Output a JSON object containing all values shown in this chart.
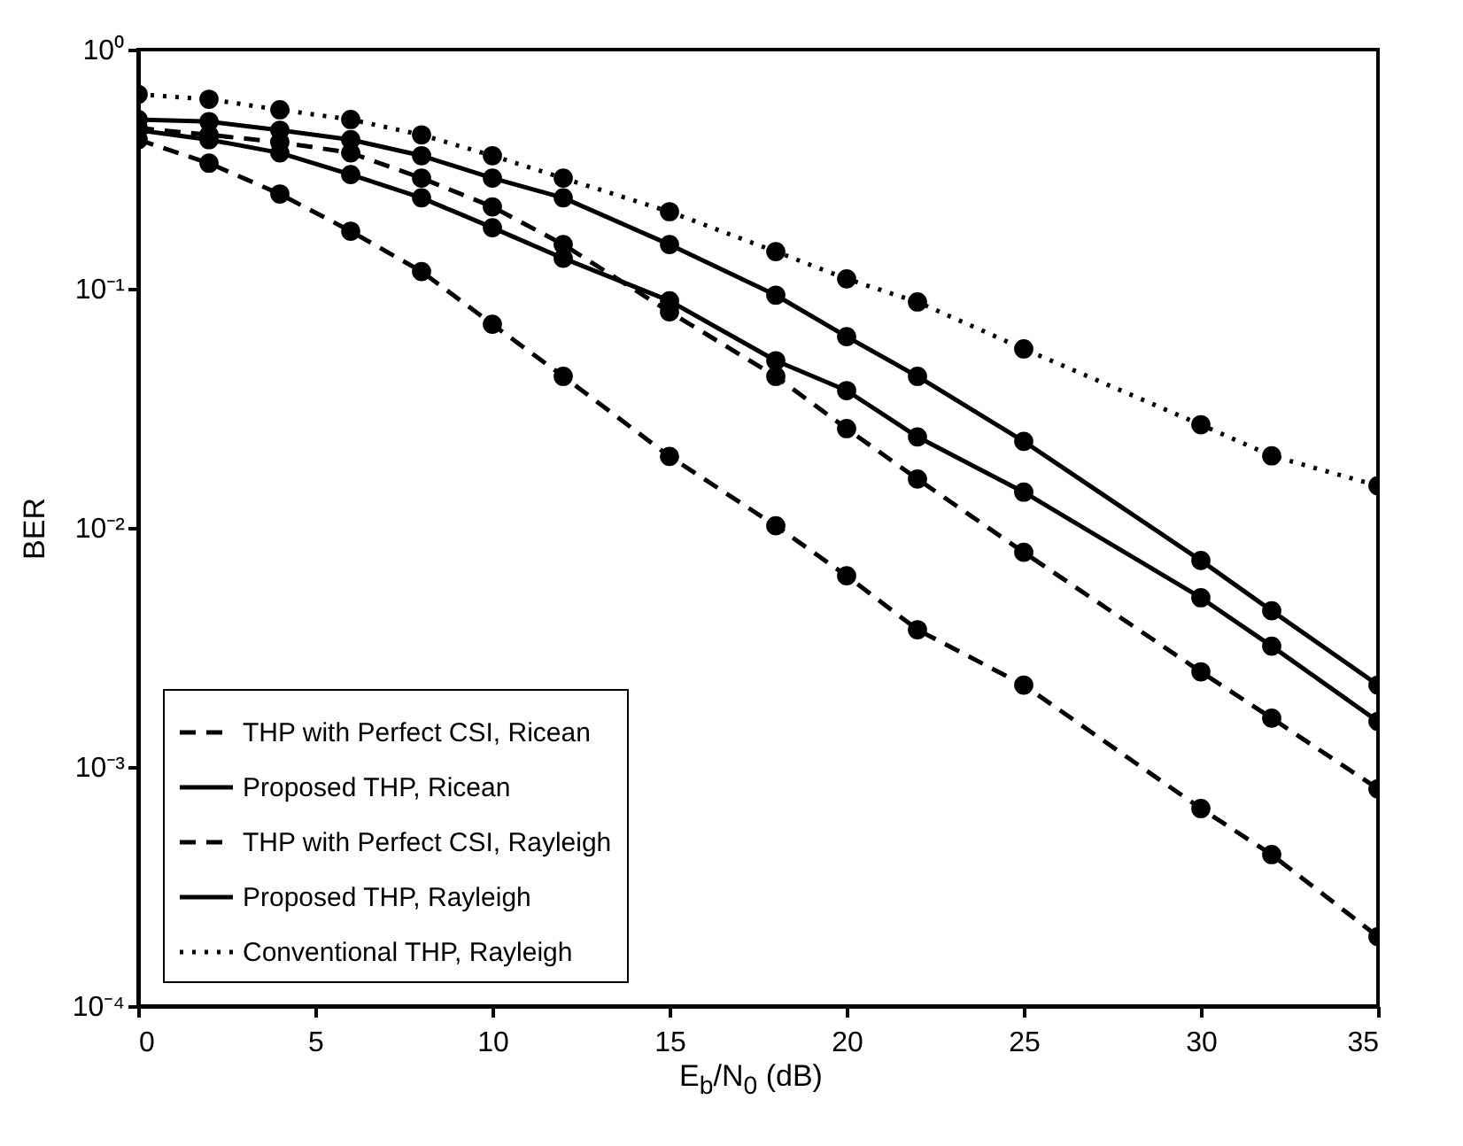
{
  "chart_data": {
    "type": "line",
    "xlabel": "E$_{b}$/N$_{0}$ (dB)",
    "ylabel": "BER",
    "log": "y",
    "grid": false,
    "legend": "bottom left",
    "marker": "circle",
    "x": [
      0,
      2,
      4,
      6,
      8,
      10,
      12,
      15,
      18,
      20,
      22,
      25,
      30,
      32,
      35
    ],
    "xlim": [
      0,
      35
    ],
    "xticks": [
      0,
      5,
      10,
      15,
      20,
      25,
      30,
      35
    ],
    "ylim": [
      0.0001,
      1
    ],
    "yticks": [
      {
        "value": 1,
        "label": "10⁰"
      },
      {
        "value": 0.1,
        "label": "10⁻¹"
      },
      {
        "value": 0.01,
        "label": "10⁻²"
      },
      {
        "value": 0.001,
        "label": "10⁻³"
      },
      {
        "value": 0.0001,
        "label": "10⁻⁴"
      }
    ],
    "series": [
      {
        "name": "THP with Perfect CSI, Ricean",
        "color": "#000000",
        "line_style": "dashed",
        "values": [
          0.42,
          0.335,
          0.249,
          0.174,
          0.118,
          0.071,
          0.043,
          0.0199,
          0.0102,
          0.0063,
          0.00375,
          0.0022,
          0.00067,
          0.00043,
          0.000195
        ]
      },
      {
        "name": "Proposed THP, Ricean",
        "color": "#000000",
        "line_style": "solid",
        "values": [
          0.46,
          0.42,
          0.37,
          0.3,
          0.24,
          0.18,
          0.134,
          0.089,
          0.05,
          0.0375,
          0.024,
          0.0141,
          0.0051,
          0.0032,
          0.00155
        ]
      },
      {
        "name": "THP with Perfect CSI, Rayleigh",
        "color": "#000000",
        "line_style": "dashed",
        "values": [
          0.47,
          0.44,
          0.41,
          0.37,
          0.29,
          0.22,
          0.153,
          0.08,
          0.043,
          0.026,
          0.016,
          0.0079,
          0.0025,
          0.0016,
          0.00081
        ]
      },
      {
        "name": "Proposed THP, Rayleigh",
        "color": "#000000",
        "line_style": "solid",
        "values": [
          0.51,
          0.5,
          0.46,
          0.42,
          0.36,
          0.29,
          0.24,
          0.153,
          0.094,
          0.063,
          0.043,
          0.023,
          0.0073,
          0.0045,
          0.0022
        ]
      },
      {
        "name": "Conventional THP, Rayleigh",
        "color": "#000000",
        "line_style": "dotted",
        "values": [
          0.65,
          0.62,
          0.56,
          0.51,
          0.44,
          0.36,
          0.29,
          0.21,
          0.143,
          0.11,
          0.088,
          0.056,
          0.027,
          0.02,
          0.015
        ]
      }
    ]
  }
}
